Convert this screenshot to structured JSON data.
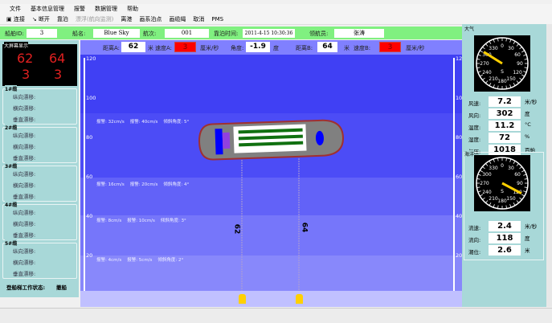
{
  "menu": [
    "文件",
    "基本信息管理",
    "报警",
    "数据管理",
    "帮助"
  ],
  "toolbar": [
    "连接",
    "断开",
    "靠泊",
    "漂浮(航向监测)",
    "离港",
    "画系泊点",
    "画缆绳",
    "取消",
    "PMS"
  ],
  "info": {
    "ship_id_label": "船舶ID:",
    "ship_id": "3",
    "name_label": "船名:",
    "name": "Blue Sky",
    "voyage_label": "航次:",
    "voyage": "001",
    "berth_time_label": "靠泊时间:",
    "berth_time": "2011-4-15 10:30:36",
    "pilot_label": "领航员:",
    "pilot": "张涛"
  },
  "measure": {
    "dist_a_label": "距离A:",
    "dist_a": "62",
    "unit_m": "米",
    "speed_a_label": "速度A:",
    "speed_a": "3",
    "unit_speed": "厘米/秒",
    "angle_label": "角度:",
    "angle": "-1.9",
    "unit_deg": "度",
    "dist_b_label": "距离B:",
    "dist_b": "64",
    "speed_b_label": "速度B:",
    "speed_b": "3"
  },
  "big_screen": {
    "title": "大屏幕显示",
    "a_dist": "62",
    "b_dist": "64",
    "a_speed": "3",
    "b_speed": "3"
  },
  "cables": [
    {
      "title": "1#缆"
    },
    {
      "title": "2#缆"
    },
    {
      "title": "3#缆"
    },
    {
      "title": "4#缆"
    },
    {
      "title": "5#缆"
    }
  ],
  "drift_labels": [
    "纵向漂移:",
    "横向漂移:",
    "垂直漂移:"
  ],
  "gangway": {
    "label": "登船梯工作状态:",
    "value": "撤船"
  },
  "scale_ticks": [
    "120",
    "100",
    "80",
    "60",
    "40",
    "20"
  ],
  "bands": [
    "报警: 32cm/s    报警: 40cm/s    倾斜角度: 5°",
    "报警: 16cm/s    报警: 20cm/s    倾斜角度: 4°",
    "报警: 8cm/s    报警: 10cm/s    倾斜角度: 3°",
    "报警: 4cm/s    报警: 5cm/s    倾斜角度: 2°"
  ],
  "line_labels": [
    "62",
    "64"
  ],
  "atmosphere": {
    "title": "大气",
    "wind_direction_deg": 302,
    "rows": [
      {
        "label": "风速:",
        "value": "7.2",
        "unit": "米/秒"
      },
      {
        "label": "风向:",
        "value": "302",
        "unit": "度"
      },
      {
        "label": "温度:",
        "value": "11.2",
        "unit": "°C"
      },
      {
        "label": "湿度:",
        "value": "72",
        "unit": "%"
      },
      {
        "label": "气压:",
        "value": "1018",
        "unit": "百帕"
      }
    ]
  },
  "ocean": {
    "title": "海洋",
    "current_direction_deg": 118,
    "rows": [
      {
        "label": "流速:",
        "value": "2.4",
        "unit": "米/秒"
      },
      {
        "label": "流向:",
        "value": "118",
        "unit": "度"
      },
      {
        "label": "潮位:",
        "value": "2.6",
        "unit": "米"
      }
    ]
  },
  "gauge_labels": [
    "0",
    "30",
    "60",
    "90",
    "120",
    "150",
    "180",
    "210",
    "240",
    "270",
    "300",
    "330"
  ],
  "gauge_center": "S",
  "colors": {
    "info_bar": "#80f080",
    "measure_bar": "#8080ff",
    "alarm": "#ff0000",
    "ship_hull": "#808080",
    "bollard": "#ffd000"
  }
}
